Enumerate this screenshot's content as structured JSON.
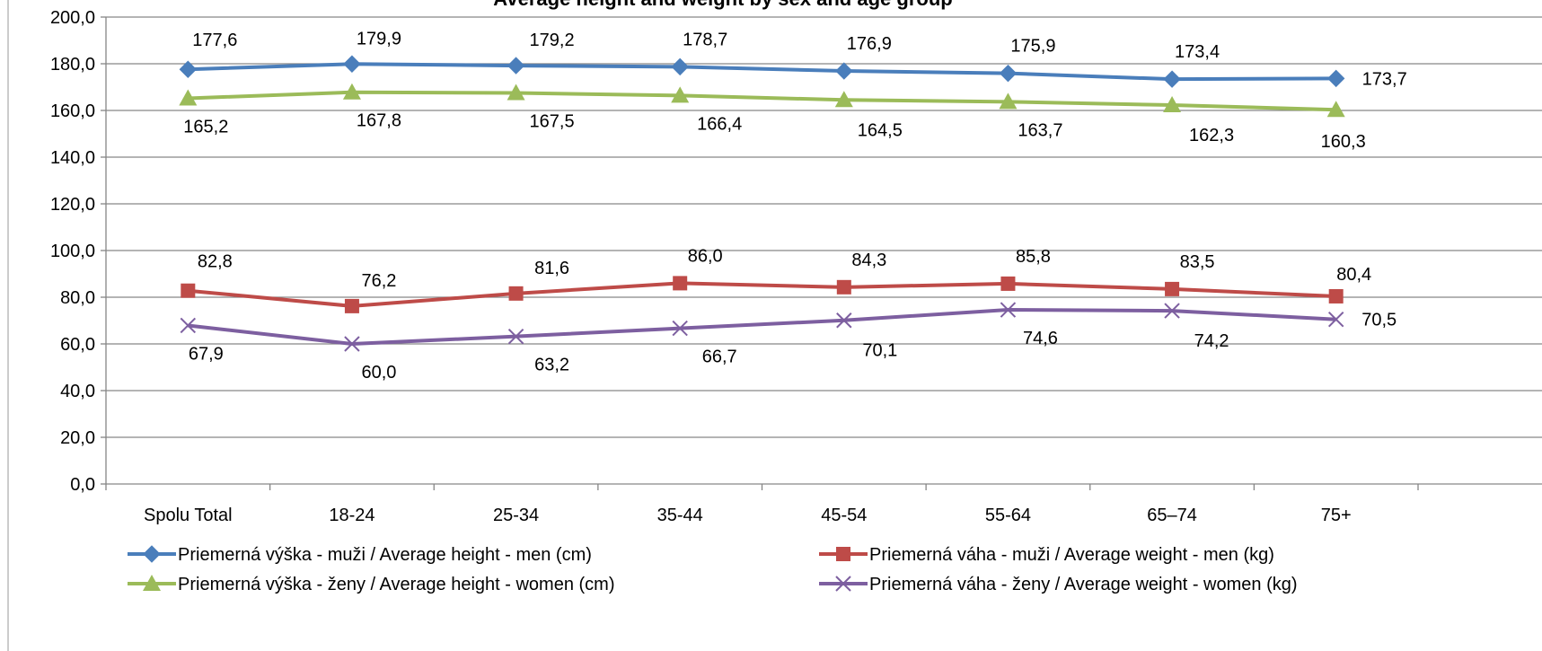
{
  "chart_data": {
    "type": "line",
    "title": "Average height and weight by sex and age group",
    "categories": [
      "Spolu Total",
      "18-24",
      "25-34",
      "35-44",
      "45-54",
      "55-64",
      "65–74",
      "75+"
    ],
    "ylim": [
      0,
      200
    ],
    "yticks": [
      "0,0",
      "20,0",
      "40,0",
      "60,0",
      "80,0",
      "100,0",
      "120,0",
      "140,0",
      "160,0",
      "180,0",
      "200,0"
    ],
    "grid": true,
    "legend_position": "bottom",
    "series": [
      {
        "name": "Priemerná výška - muži / Average height - men (cm)",
        "values": [
          177.6,
          179.9,
          179.2,
          178.7,
          176.9,
          175.9,
          173.4,
          173.7
        ],
        "labels": [
          "177,6",
          "179,9",
          "179,2",
          "178,7",
          "176,9",
          "175,9",
          "173,4",
          "173,7"
        ],
        "color": "#4a7ebb",
        "marker": "diamond",
        "label_position": "above"
      },
      {
        "name": "Priemerná výška - ženy / Average height - women (cm)",
        "values": [
          165.2,
          167.8,
          167.5,
          166.4,
          164.5,
          163.7,
          162.3,
          160.3
        ],
        "labels": [
          "165,2",
          "167,8",
          "167,5",
          "166,4",
          "164,5",
          "163,7",
          "162,3",
          "160,3"
        ],
        "color": "#9bbb59",
        "marker": "triangle",
        "label_position": "below"
      },
      {
        "name": "Priemerná váha - muži / Average weight - men (kg)",
        "values": [
          82.8,
          76.2,
          81.6,
          86.0,
          84.3,
          85.8,
          83.5,
          80.4
        ],
        "labels": [
          "82,8",
          "76,2",
          "81,6",
          "86,0",
          "84,3",
          "85,8",
          "83,5",
          "80,4"
        ],
        "color": "#be4b48",
        "marker": "square",
        "label_position": "above"
      },
      {
        "name": "Priemerná váha - ženy / Average weight - women (kg)",
        "values": [
          67.9,
          60.0,
          63.2,
          66.7,
          70.1,
          74.6,
          74.2,
          70.5
        ],
        "labels": [
          "67,9",
          "60,0",
          "63,2",
          "66,7",
          "70,1",
          "74,6",
          "74,2",
          "70,5"
        ],
        "color": "#7d5fa0",
        "marker": "x",
        "label_position": "below"
      }
    ]
  }
}
